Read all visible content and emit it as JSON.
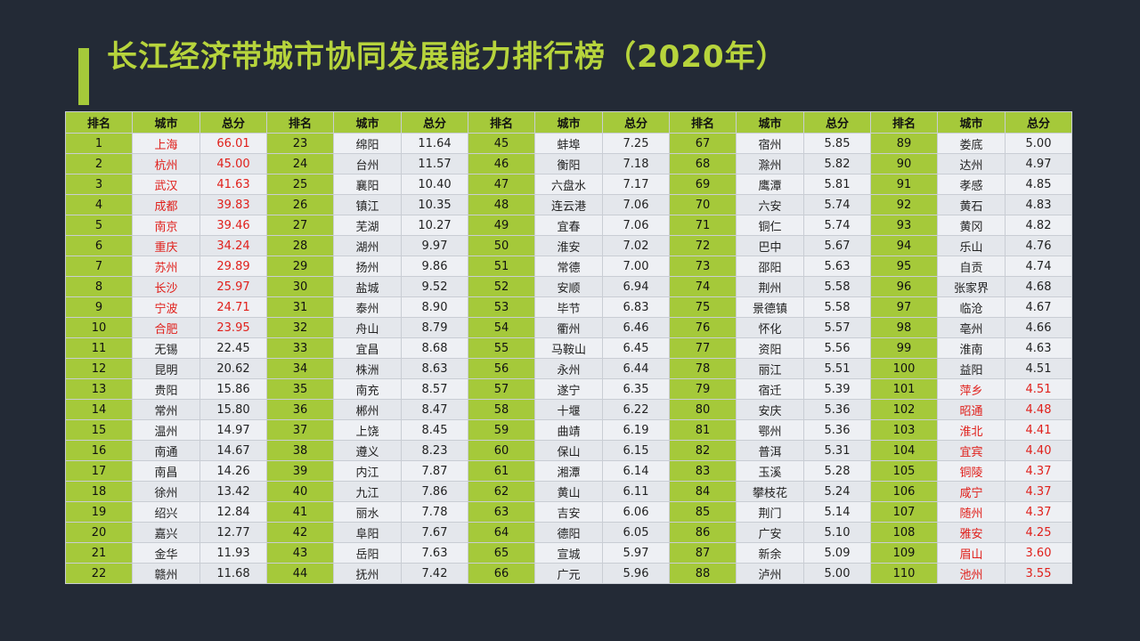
{
  "title": "长江经济带城市协同发展能力排行榜（2020年）",
  "headers": [
    "排名",
    "城市",
    "总分"
  ],
  "colors": {
    "accent": "#a5c93a",
    "title": "#b7d43c",
    "highlight": "#e0201b",
    "background": "#232a36"
  },
  "rows": [
    [
      "1",
      "上海",
      "66.01"
    ],
    [
      "2",
      "杭州",
      "45.00"
    ],
    [
      "3",
      "武汉",
      "41.63"
    ],
    [
      "4",
      "成都",
      "39.83"
    ],
    [
      "5",
      "南京",
      "39.46"
    ],
    [
      "6",
      "重庆",
      "34.24"
    ],
    [
      "7",
      "苏州",
      "29.89"
    ],
    [
      "8",
      "长沙",
      "25.97"
    ],
    [
      "9",
      "宁波",
      "24.71"
    ],
    [
      "10",
      "合肥",
      "23.95"
    ],
    [
      "11",
      "无锡",
      "22.45"
    ],
    [
      "12",
      "昆明",
      "20.62"
    ],
    [
      "13",
      "贵阳",
      "15.86"
    ],
    [
      "14",
      "常州",
      "15.80"
    ],
    [
      "15",
      "温州",
      "14.97"
    ],
    [
      "16",
      "南通",
      "14.67"
    ],
    [
      "17",
      "南昌",
      "14.26"
    ],
    [
      "18",
      "徐州",
      "13.42"
    ],
    [
      "19",
      "绍兴",
      "12.84"
    ],
    [
      "20",
      "嘉兴",
      "12.77"
    ],
    [
      "21",
      "金华",
      "11.93"
    ],
    [
      "22",
      "赣州",
      "11.68"
    ],
    [
      "23",
      "绵阳",
      "11.64"
    ],
    [
      "24",
      "台州",
      "11.57"
    ],
    [
      "25",
      "襄阳",
      "10.40"
    ],
    [
      "26",
      "镇江",
      "10.35"
    ],
    [
      "27",
      "芜湖",
      "10.27"
    ],
    [
      "28",
      "湖州",
      "9.97"
    ],
    [
      "29",
      "扬州",
      "9.86"
    ],
    [
      "30",
      "盐城",
      "9.52"
    ],
    [
      "31",
      "泰州",
      "8.90"
    ],
    [
      "32",
      "舟山",
      "8.79"
    ],
    [
      "33",
      "宜昌",
      "8.68"
    ],
    [
      "34",
      "株洲",
      "8.63"
    ],
    [
      "35",
      "南充",
      "8.57"
    ],
    [
      "36",
      "郴州",
      "8.47"
    ],
    [
      "37",
      "上饶",
      "8.45"
    ],
    [
      "38",
      "遵义",
      "8.23"
    ],
    [
      "39",
      "内江",
      "7.87"
    ],
    [
      "40",
      "九江",
      "7.86"
    ],
    [
      "41",
      "丽水",
      "7.78"
    ],
    [
      "42",
      "阜阳",
      "7.67"
    ],
    [
      "43",
      "岳阳",
      "7.63"
    ],
    [
      "44",
      "抚州",
      "7.42"
    ],
    [
      "45",
      "蚌埠",
      "7.25"
    ],
    [
      "46",
      "衡阳",
      "7.18"
    ],
    [
      "47",
      "六盘水",
      "7.17"
    ],
    [
      "48",
      "连云港",
      "7.06"
    ],
    [
      "49",
      "宜春",
      "7.06"
    ],
    [
      "50",
      "淮安",
      "7.02"
    ],
    [
      "51",
      "常德",
      "7.00"
    ],
    [
      "52",
      "安顺",
      "6.94"
    ],
    [
      "53",
      "毕节",
      "6.83"
    ],
    [
      "54",
      "衢州",
      "6.46"
    ],
    [
      "55",
      "马鞍山",
      "6.45"
    ],
    [
      "56",
      "永州",
      "6.44"
    ],
    [
      "57",
      "遂宁",
      "6.35"
    ],
    [
      "58",
      "十堰",
      "6.22"
    ],
    [
      "59",
      "曲靖",
      "6.19"
    ],
    [
      "60",
      "保山",
      "6.15"
    ],
    [
      "61",
      "湘潭",
      "6.14"
    ],
    [
      "62",
      "黄山",
      "6.11"
    ],
    [
      "63",
      "吉安",
      "6.06"
    ],
    [
      "64",
      "德阳",
      "6.05"
    ],
    [
      "65",
      "宣城",
      "5.97"
    ],
    [
      "66",
      "广元",
      "5.96"
    ],
    [
      "67",
      "宿州",
      "5.85"
    ],
    [
      "68",
      "滁州",
      "5.82"
    ],
    [
      "69",
      "鹰潭",
      "5.81"
    ],
    [
      "70",
      "六安",
      "5.74"
    ],
    [
      "71",
      "铜仁",
      "5.74"
    ],
    [
      "72",
      "巴中",
      "5.67"
    ],
    [
      "73",
      "邵阳",
      "5.63"
    ],
    [
      "74",
      "荆州",
      "5.58"
    ],
    [
      "75",
      "景德镇",
      "5.58"
    ],
    [
      "76",
      "怀化",
      "5.57"
    ],
    [
      "77",
      "资阳",
      "5.56"
    ],
    [
      "78",
      "丽江",
      "5.51"
    ],
    [
      "79",
      "宿迁",
      "5.39"
    ],
    [
      "80",
      "安庆",
      "5.36"
    ],
    [
      "81",
      "鄂州",
      "5.36"
    ],
    [
      "82",
      "普洱",
      "5.31"
    ],
    [
      "83",
      "玉溪",
      "5.28"
    ],
    [
      "84",
      "攀枝花",
      "5.24"
    ],
    [
      "85",
      "荆门",
      "5.14"
    ],
    [
      "86",
      "广安",
      "5.10"
    ],
    [
      "87",
      "新余",
      "5.09"
    ],
    [
      "88",
      "泸州",
      "5.00"
    ],
    [
      "89",
      "娄底",
      "5.00"
    ],
    [
      "90",
      "达州",
      "4.97"
    ],
    [
      "91",
      "孝感",
      "4.85"
    ],
    [
      "92",
      "黄石",
      "4.83"
    ],
    [
      "93",
      "黄冈",
      "4.82"
    ],
    [
      "94",
      "乐山",
      "4.76"
    ],
    [
      "95",
      "自贡",
      "4.74"
    ],
    [
      "96",
      "张家界",
      "4.68"
    ],
    [
      "97",
      "临沧",
      "4.67"
    ],
    [
      "98",
      "亳州",
      "4.66"
    ],
    [
      "99",
      "淮南",
      "4.63"
    ],
    [
      "100",
      "益阳",
      "4.51"
    ],
    [
      "101",
      "萍乡",
      "4.51"
    ],
    [
      "102",
      "昭通",
      "4.48"
    ],
    [
      "103",
      "淮北",
      "4.41"
    ],
    [
      "104",
      "宜宾",
      "4.40"
    ],
    [
      "105",
      "铜陵",
      "4.37"
    ],
    [
      "106",
      "咸宁",
      "4.37"
    ],
    [
      "107",
      "随州",
      "4.37"
    ],
    [
      "108",
      "雅安",
      "4.25"
    ],
    [
      "109",
      "眉山",
      "3.60"
    ],
    [
      "110",
      "池州",
      "3.55"
    ]
  ],
  "highlighted_ranks": [
    1,
    2,
    3,
    4,
    5,
    6,
    7,
    8,
    9,
    10,
    101,
    102,
    103,
    104,
    105,
    106,
    107,
    108,
    109,
    110
  ]
}
